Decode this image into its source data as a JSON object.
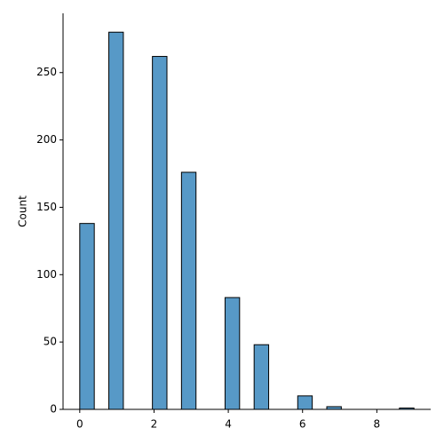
{
  "chart_data": {
    "type": "histogram",
    "y_label": "Count",
    "bins": [
      0,
      0.3913,
      0.7826,
      1.1739,
      1.5652,
      1.9565,
      2.3478,
      2.7391,
      3.1304,
      3.5217,
      3.913,
      4.3043,
      4.6957,
      5.087,
      5.4783,
      5.8696,
      6.2609,
      6.6522,
      7.0435,
      7.4348,
      7.8261,
      8.2174,
      8.6087,
      9
    ],
    "values": [
      138,
      0,
      280,
      0,
      0,
      262,
      0,
      176,
      0,
      0,
      83,
      0,
      48,
      0,
      0,
      10,
      0,
      2,
      0,
      0,
      0,
      0,
      1
    ],
    "color": "#1f77b4",
    "xlim": [
      -0.45,
      9.45
    ],
    "ylim": [
      0,
      294
    ],
    "xticks": [
      0,
      2,
      4,
      6,
      8
    ],
    "yticks": [
      0,
      50,
      100,
      150,
      200,
      250
    ]
  }
}
